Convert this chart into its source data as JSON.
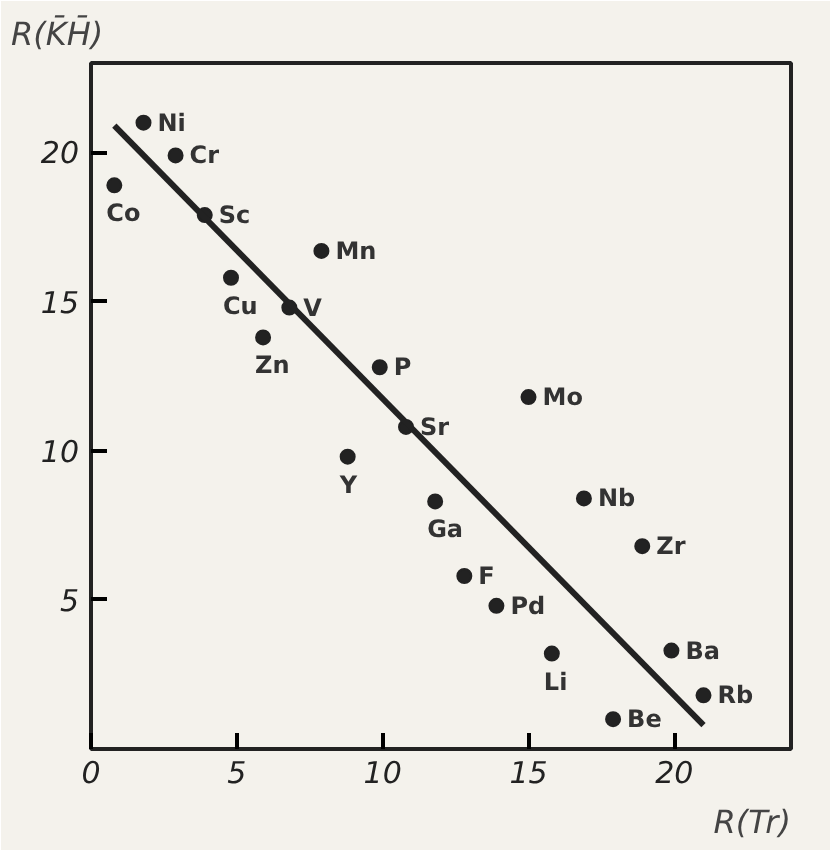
{
  "chart_data": {
    "type": "scatter",
    "xlabel": "R(Tr)",
    "ylabel": "R(K̄H̄)",
    "x": [
      1.8,
      2.9,
      0.8,
      3.9,
      7.9,
      4.8,
      6.8,
      5.9,
      9.9,
      15.0,
      10.8,
      8.8,
      11.8,
      16.9,
      18.9,
      12.8,
      13.9,
      15.8,
      19.9,
      21.0,
      17.9
    ],
    "series": [
      {
        "color": "#222222",
        "marker": "circle",
        "values": [
          21.0,
          19.9,
          18.9,
          17.9,
          16.7,
          15.8,
          14.8,
          13.8,
          12.8,
          11.8,
          10.8,
          9.8,
          8.3,
          8.4,
          6.8,
          5.8,
          4.8,
          3.2,
          3.3,
          1.8,
          1.0
        ]
      },
      {
        "type": "line",
        "color": "#222222",
        "x": [
          0.8,
          21.0
        ],
        "values": [
          20.9,
          0.8
        ]
      }
    ],
    "annotations": [
      {
        "text": "Ni",
        "x": 1.8,
        "y": 21.0
      },
      {
        "text": "Cr",
        "x": 2.9,
        "y": 19.9
      },
      {
        "text": "Co",
        "x": 0.8,
        "y": 18.9
      },
      {
        "text": "Sc",
        "x": 3.9,
        "y": 17.9
      },
      {
        "text": "Mn",
        "x": 7.9,
        "y": 16.7
      },
      {
        "text": "Cu",
        "x": 4.8,
        "y": 15.8
      },
      {
        "text": "V",
        "x": 6.8,
        "y": 14.8
      },
      {
        "text": "Zn",
        "x": 5.9,
        "y": 13.8
      },
      {
        "text": "P",
        "x": 9.9,
        "y": 12.8
      },
      {
        "text": "Mo",
        "x": 15.0,
        "y": 11.8
      },
      {
        "text": "Sr",
        "x": 10.8,
        "y": 10.8
      },
      {
        "text": "Y",
        "x": 8.8,
        "y": 9.8
      },
      {
        "text": "Ga",
        "x": 11.8,
        "y": 8.3
      },
      {
        "text": "Nb",
        "x": 16.9,
        "y": 8.4
      },
      {
        "text": "Zr",
        "x": 18.9,
        "y": 6.8
      },
      {
        "text": "F",
        "x": 12.8,
        "y": 5.8
      },
      {
        "text": "Pd",
        "x": 13.9,
        "y": 4.8
      },
      {
        "text": "Li",
        "x": 15.8,
        "y": 3.2
      },
      {
        "text": "Ba",
        "x": 19.9,
        "y": 3.3
      },
      {
        "text": "Rb",
        "x": 21.0,
        "y": 1.8
      },
      {
        "text": "Be",
        "x": 17.9,
        "y": 1.0
      }
    ],
    "xlim": [
      0,
      24
    ],
    "ylim": [
      0,
      23
    ],
    "xticks": [
      0,
      5,
      10,
      15,
      20
    ],
    "yticks": [
      5,
      10,
      15,
      20
    ],
    "grid": false
  }
}
